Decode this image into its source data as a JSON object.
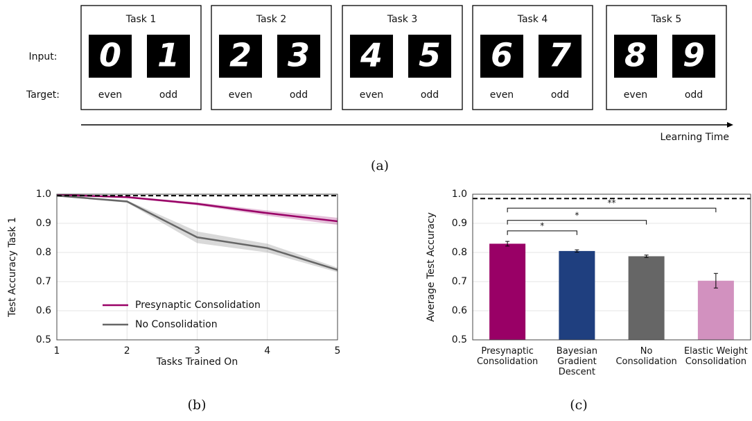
{
  "diagram": {
    "row_labels": [
      "Input:",
      "Target:"
    ],
    "tasks": [
      {
        "title": "Task 1",
        "inputs": [
          "0",
          "1"
        ],
        "targets": [
          "even",
          "odd"
        ]
      },
      {
        "title": "Task 2",
        "inputs": [
          "2",
          "3"
        ],
        "targets": [
          "even",
          "odd"
        ]
      },
      {
        "title": "Task 3",
        "inputs": [
          "4",
          "5"
        ],
        "targets": [
          "even",
          "odd"
        ]
      },
      {
        "title": "Task 4",
        "inputs": [
          "6",
          "7"
        ],
        "targets": [
          "even",
          "odd"
        ]
      },
      {
        "title": "Task 5",
        "inputs": [
          "8",
          "9"
        ],
        "targets": [
          "even",
          "odd"
        ]
      }
    ],
    "arrow_label": "Learning Time",
    "caption": "(a)"
  },
  "chart_data": [
    {
      "type": "line",
      "xlabel": "Tasks Trained On",
      "ylabel": "Test Accuracy Task 1",
      "x": [
        1,
        2,
        3,
        4,
        5
      ],
      "xlim": [
        1,
        5
      ],
      "xticks": [
        1,
        2,
        3,
        4,
        5
      ],
      "ylim": [
        0.5,
        1
      ],
      "yticks": [
        0.5,
        0.6,
        0.7,
        0.8,
        0.9,
        {
          "value": 1,
          "label": "1.0"
        }
      ],
      "grid": true,
      "reference_line": 0.995,
      "legend": "lower center",
      "series": [
        {
          "name": "Presynaptic Consolidation",
          "color": "#990066",
          "values": [
            0.998,
            0.99,
            0.967,
            0.935,
            0.907
          ],
          "errors": [
            0.002,
            0.003,
            0.005,
            0.009,
            0.012
          ]
        },
        {
          "name": "No Consolidation",
          "color": "#666666",
          "values": [
            0.995,
            0.975,
            0.852,
            0.815,
            0.74
          ],
          "errors": [
            0.002,
            0.004,
            0.02,
            0.015,
            0.008
          ]
        }
      ],
      "caption": "(b)"
    },
    {
      "type": "bar",
      "ylabel": "Average Test Accuracy",
      "categories": [
        "Presynaptic\nConsolidation",
        "Bayesian\nGradient\nDescent",
        "No\nConsolidation",
        "Elastic Weight\nConsolidation"
      ],
      "values": [
        0.83,
        0.805,
        0.787,
        0.703
      ],
      "errors": [
        0.008,
        0.004,
        0.004,
        0.025
      ],
      "colors": [
        "#990066",
        "#1f3f7f",
        "#666666",
        "#d291bf"
      ],
      "ylim": [
        0.5,
        1
      ],
      "yticks": [
        0.5,
        0.6,
        0.7,
        0.8,
        0.9,
        {
          "value": 1,
          "label": "1.0"
        }
      ],
      "grid": true,
      "reference_line": 0.985,
      "significance": [
        {
          "label": "*",
          "from": 0,
          "to": 1,
          "y": 0.874
        },
        {
          "label": "*",
          "from": 0,
          "to": 2,
          "y": 0.91
        },
        {
          "label": "**",
          "from": 0,
          "to": 3,
          "y": 0.952
        }
      ],
      "caption": "(c)"
    }
  ]
}
